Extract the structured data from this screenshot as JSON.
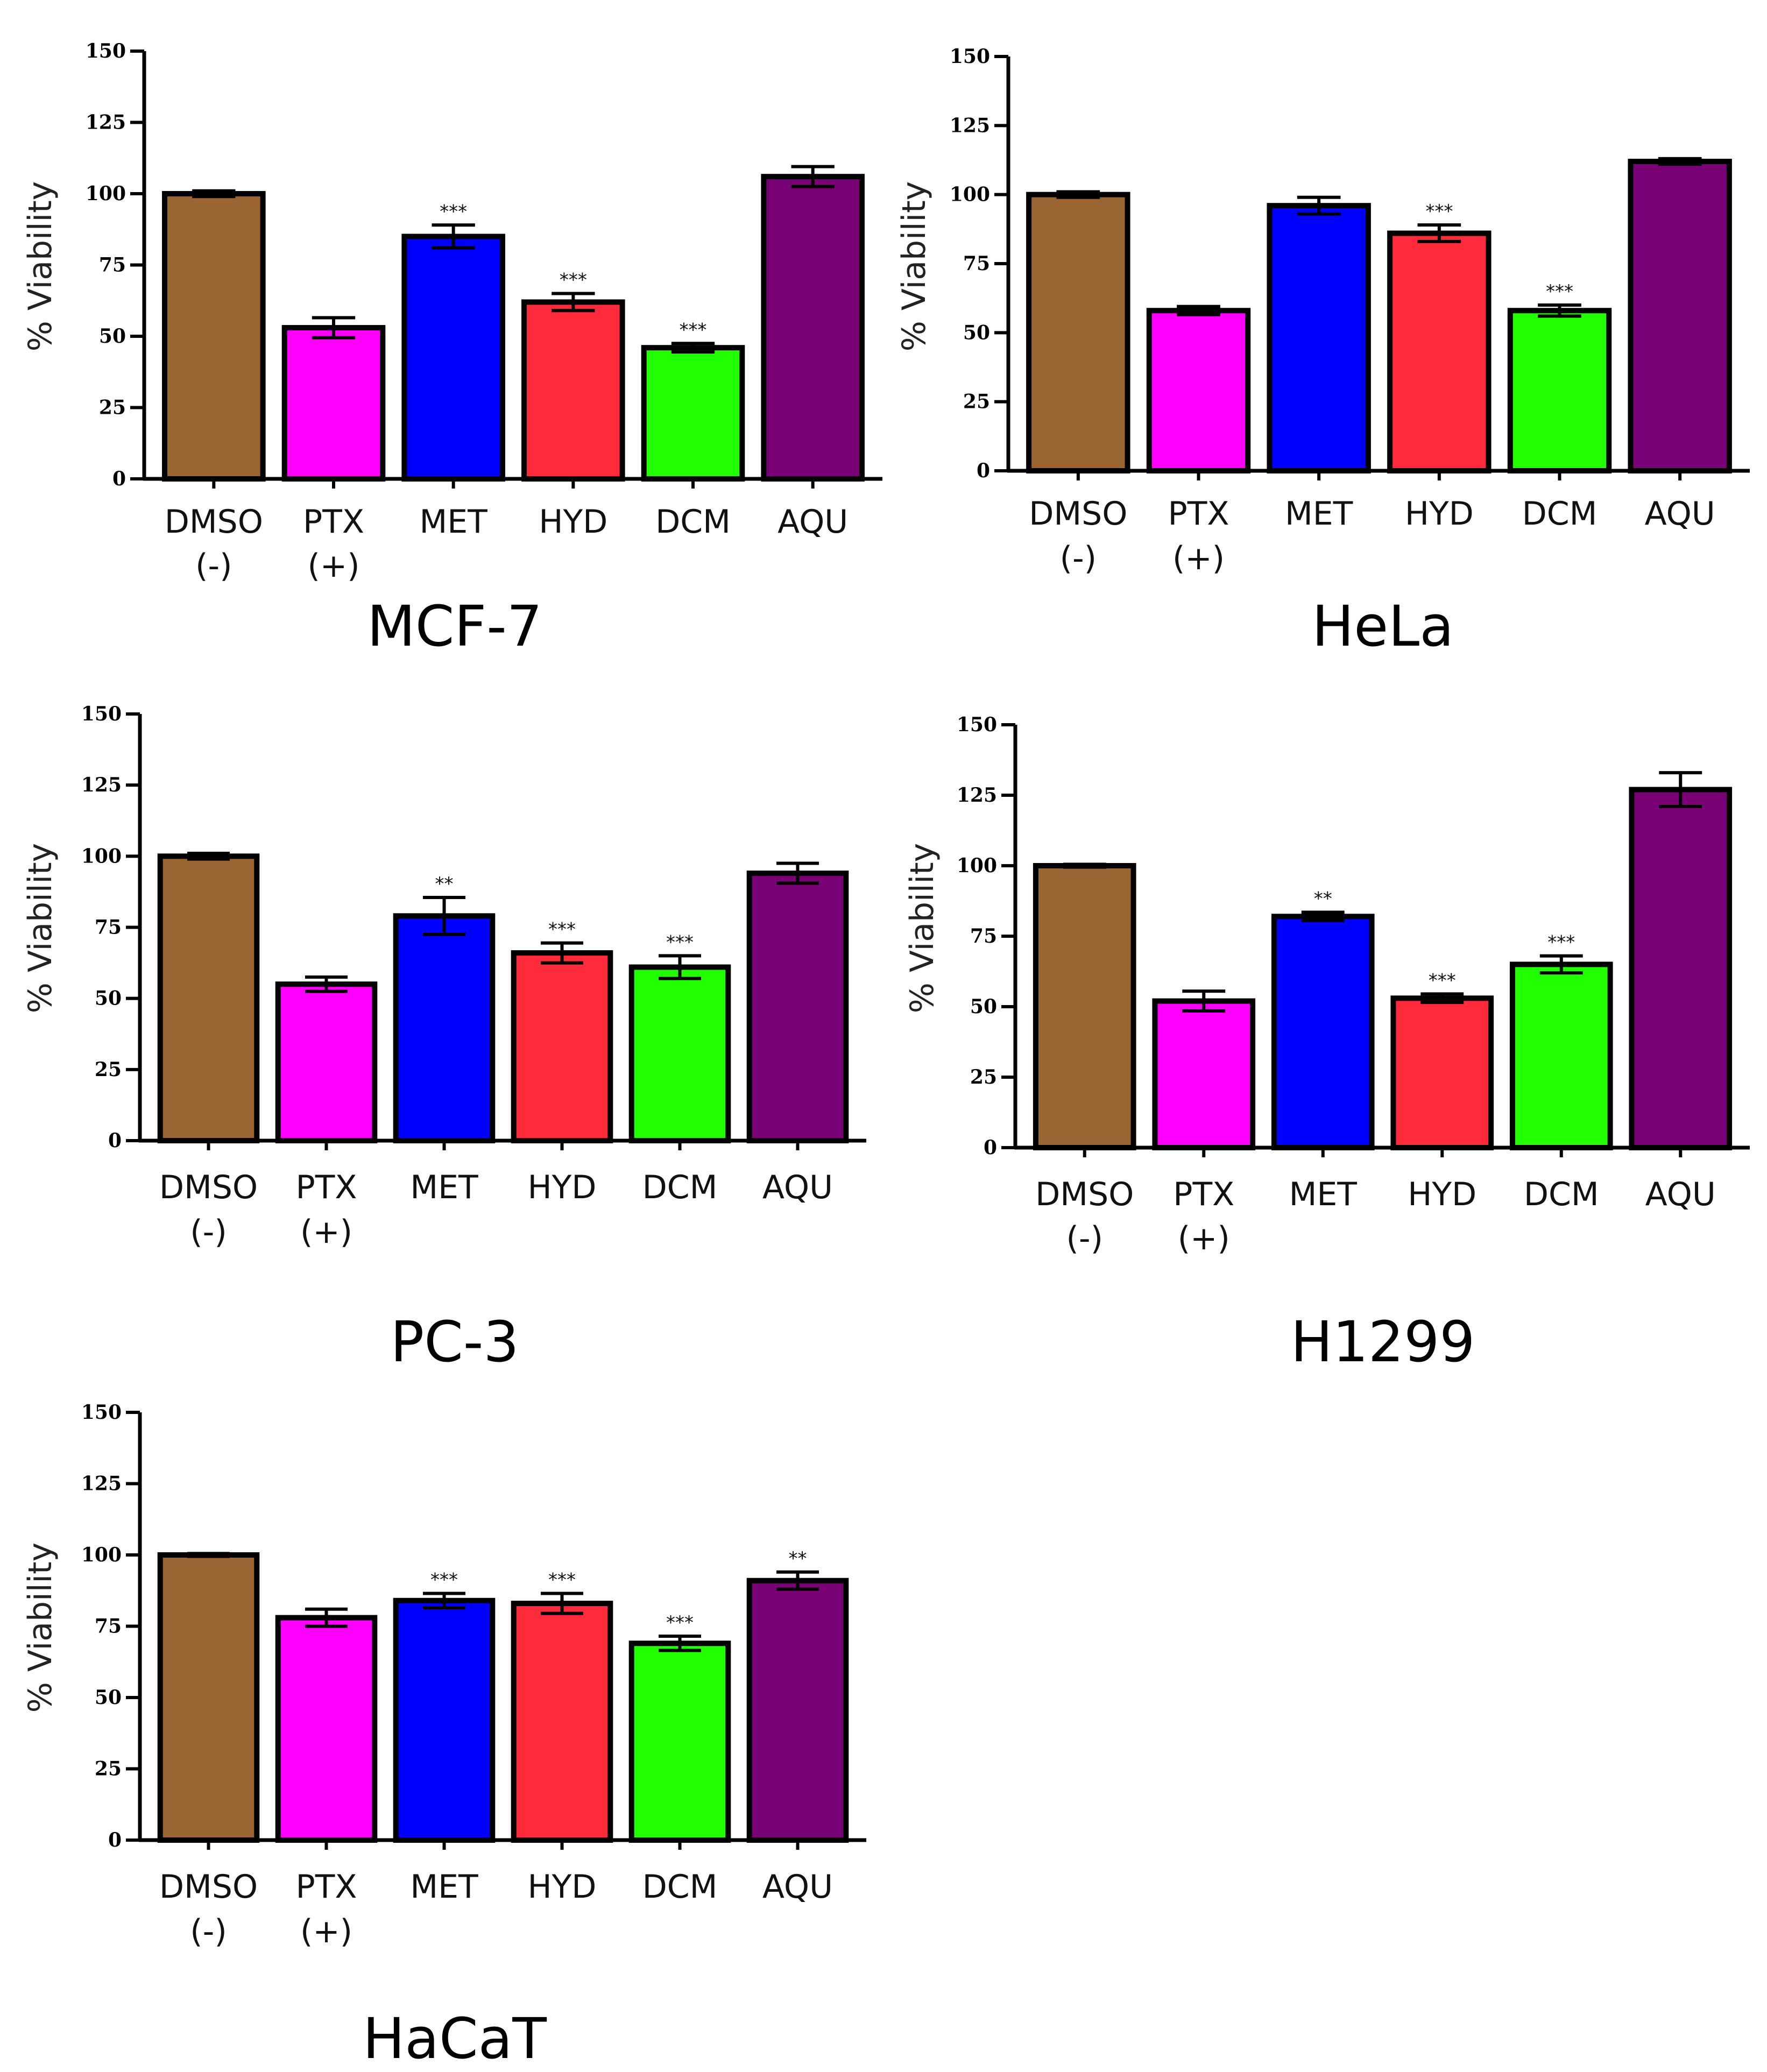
{
  "figure": {
    "ylabel": "% Viability",
    "colors": {
      "DMSO": "#9a6532",
      "PTX": "#ff00ff",
      "MET": "#0000ff",
      "HYD": "#ff2a3a",
      "DCM": "#22ff00",
      "AQU": "#7a0075"
    }
  },
  "chart_data": [
    {
      "type": "bar",
      "title": "MCF-7",
      "ylabel": "% Viability",
      "ylim": [
        0,
        150
      ],
      "yticks": [
        "0",
        "25",
        "50",
        "75",
        "100",
        "125",
        "150"
      ],
      "categories": [
        "DMSO",
        "PTX",
        "MET",
        "HYD",
        "DCM",
        "AQU"
      ],
      "sublabels": [
        "(-)",
        "(+)",
        "",
        "",
        "",
        ""
      ],
      "values": [
        100,
        53,
        85,
        62,
        46,
        106
      ],
      "errors": [
        1,
        3.5,
        4,
        3,
        1.5,
        3.5
      ],
      "significance": [
        "",
        "",
        "***",
        "***",
        "***",
        ""
      ]
    },
    {
      "type": "bar",
      "title": "HeLa",
      "ylabel": "% Viability",
      "ylim": [
        0,
        150
      ],
      "yticks": [
        "0",
        "25",
        "50",
        "75",
        "100",
        "125",
        "150"
      ],
      "categories": [
        "DMSO",
        "PTX",
        "MET",
        "HYD",
        "DCM",
        "AQU"
      ],
      "sublabels": [
        "(-)",
        "(+)",
        "",
        "",
        "",
        ""
      ],
      "values": [
        100,
        58,
        96,
        86,
        58,
        112
      ],
      "errors": [
        1,
        1.5,
        3,
        3,
        2,
        1
      ],
      "significance": [
        "",
        "",
        "",
        "***",
        "***",
        ""
      ]
    },
    {
      "type": "bar",
      "title": "PC-3",
      "ylabel": "% Viability",
      "ylim": [
        0,
        150
      ],
      "yticks": [
        "0",
        "25",
        "50",
        "75",
        "100",
        "125",
        "150"
      ],
      "categories": [
        "DMSO",
        "PTX",
        "MET",
        "HYD",
        "DCM",
        "AQU"
      ],
      "sublabels": [
        "(-)",
        "(+)",
        "",
        "",
        "",
        ""
      ],
      "values": [
        100,
        55,
        79,
        66,
        61,
        94
      ],
      "errors": [
        1,
        2.5,
        6.5,
        3.5,
        4,
        3.5
      ],
      "significance": [
        "",
        "",
        "**",
        "***",
        "***",
        ""
      ]
    },
    {
      "type": "bar",
      "title": "H1299",
      "ylabel": "% Viability",
      "ylim": [
        0,
        150
      ],
      "yticks": [
        "0",
        "25",
        "50",
        "75",
        "100",
        "125",
        "150"
      ],
      "categories": [
        "DMSO",
        "PTX",
        "MET",
        "HYD",
        "DCM",
        "AQU"
      ],
      "sublabels": [
        "(-)",
        "(+)",
        "",
        "",
        "",
        ""
      ],
      "values": [
        100,
        52,
        82,
        53,
        65,
        127
      ],
      "errors": [
        0.5,
        3.5,
        1.5,
        1.5,
        3,
        6
      ],
      "significance": [
        "",
        "",
        "**",
        "***",
        "***",
        ""
      ]
    },
    {
      "type": "bar",
      "title": "HaCaT",
      "ylabel": "% Viability",
      "ylim": [
        0,
        150
      ],
      "yticks": [
        "0",
        "25",
        "50",
        "75",
        "100",
        "125",
        "150"
      ],
      "categories": [
        "DMSO",
        "PTX",
        "MET",
        "HYD",
        "DCM",
        "AQU"
      ],
      "sublabels": [
        "(-)",
        "(+)",
        "",
        "",
        "",
        ""
      ],
      "values": [
        100,
        78,
        84,
        83,
        69,
        91
      ],
      "errors": [
        0.5,
        3,
        2.5,
        3.5,
        2.5,
        3
      ],
      "significance": [
        "",
        "",
        "***",
        "***",
        "***",
        "**"
      ]
    }
  ]
}
